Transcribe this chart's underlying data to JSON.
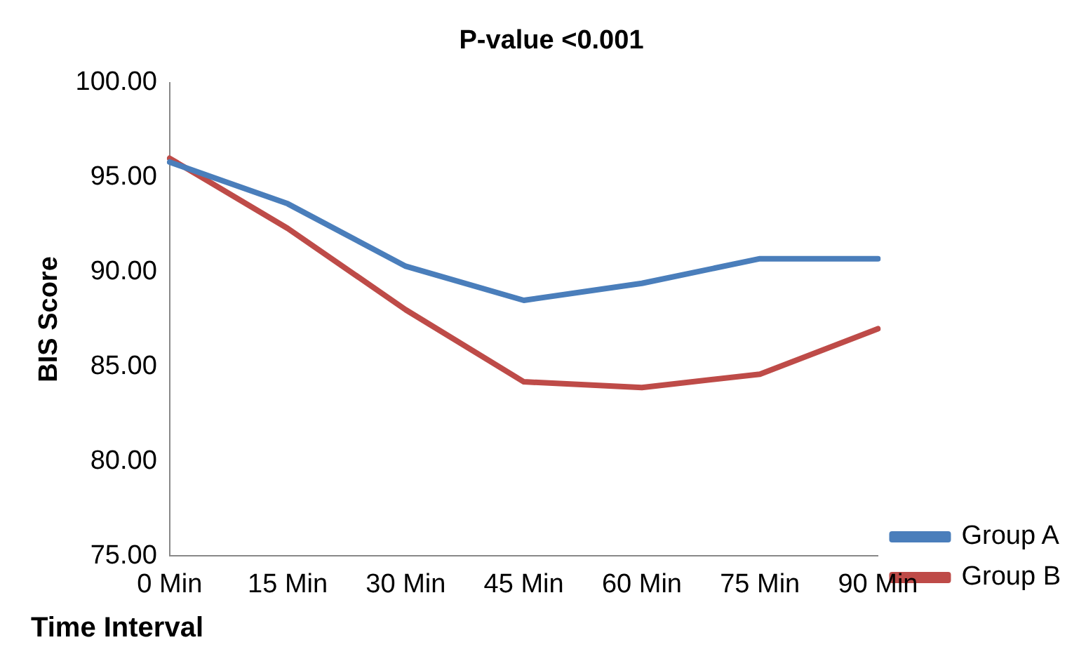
{
  "chart_data": {
    "type": "line",
    "title": "P-value <0.001",
    "xlabel": "Time Interval",
    "ylabel": "BIS Score",
    "categories": [
      "0 Min",
      "15 Min",
      "30 Min",
      "45 Min",
      "60 Min",
      "75 Min",
      "90 Min"
    ],
    "series": [
      {
        "name": "Group A",
        "color": "#4a7ebb",
        "values": [
          95.8,
          93.6,
          90.3,
          88.5,
          89.4,
          90.7,
          90.7
        ]
      },
      {
        "name": "Group B",
        "color": "#be4b48",
        "values": [
          96.0,
          92.3,
          88.0,
          84.2,
          83.9,
          84.6,
          87.0
        ]
      }
    ],
    "ylim": [
      75,
      100
    ],
    "yticks": [
      {
        "value": 75,
        "label": "75.00"
      },
      {
        "value": 80,
        "label": "80.00"
      },
      {
        "value": 85,
        "label": "85.00"
      },
      {
        "value": 90,
        "label": "90.00"
      },
      {
        "value": 95,
        "label": "95.00"
      },
      {
        "value": 100,
        "label": "100.00"
      }
    ],
    "grid": false,
    "legend": "bottom right",
    "marker": "none",
    "line_style": "solid"
  }
}
